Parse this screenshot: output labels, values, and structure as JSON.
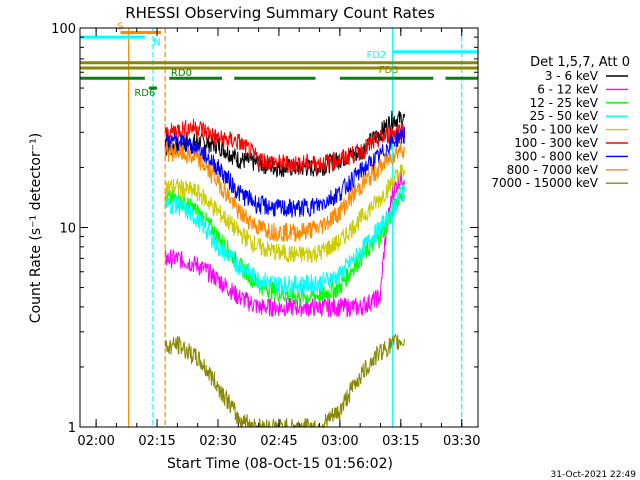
{
  "chart_data": {
    "type": "line",
    "title": "RHESSI Observing Summary Count Rates",
    "xlabel": "Start Time (08-Oct-15 01:56:02)",
    "ylabel": "Count Rate (s⁻¹ detector⁻¹)",
    "x_axis": {
      "unit": "time",
      "range": [
        "01:56:02",
        "03:34:00"
      ],
      "tick_labels": [
        "02:00",
        "02:15",
        "02:30",
        "02:45",
        "03:00",
        "03:15",
        "03:30"
      ]
    },
    "y_axis": {
      "scale": "log",
      "range": [
        1,
        100
      ],
      "tick_labels": [
        "1",
        "10",
        "100"
      ]
    },
    "legend": {
      "placement": "right",
      "header": "Det 1,5,7, Att 0",
      "entries": [
        {
          "label": "3 - 6 keV",
          "color": "#000000"
        },
        {
          "label": "6 - 12 keV",
          "color": "#ff00ff"
        },
        {
          "label": "12 - 25 keV",
          "color": "#00ff00"
        },
        {
          "label": "25 - 50 keV",
          "color": "#00ffff"
        },
        {
          "label": "50 - 100 keV",
          "color": "#cccc00"
        },
        {
          "label": "100 - 300 keV",
          "color": "#ff0000"
        },
        {
          "label": "300 - 800 keV",
          "color": "#0000ff"
        },
        {
          "label": "800 - 7000 keV",
          "color": "#ff8800"
        },
        {
          "label": "7000 - 15000 keV",
          "color": "#888800"
        }
      ]
    },
    "series": [
      {
        "name": "3 - 6 keV",
        "color": "#000000",
        "x": [
          "02:17",
          "02:20",
          "02:25",
          "02:30",
          "02:35",
          "02:40",
          "02:45",
          "02:50",
          "02:55",
          "03:00",
          "03:05",
          "03:10",
          "03:13",
          "03:15",
          "03:16"
        ],
        "y": [
          25,
          26,
          27,
          26,
          22,
          21,
          20,
          20,
          20,
          22,
          24,
          30,
          35,
          35,
          35
        ]
      },
      {
        "name": "6 - 12 keV",
        "color": "#ff00ff",
        "x": [
          "02:17",
          "02:20",
          "02:25",
          "02:30",
          "02:35",
          "02:40",
          "02:45",
          "02:50",
          "02:55",
          "03:00",
          "03:05",
          "03:10",
          "03:13",
          "03:15",
          "03:16"
        ],
        "y": [
          7,
          7,
          6.5,
          5.5,
          4.5,
          4,
          4,
          4,
          4,
          4,
          4,
          4.5,
          15,
          18,
          18
        ]
      },
      {
        "name": "12 - 25 keV",
        "color": "#00ff00",
        "x": [
          "02:17",
          "02:20",
          "02:25",
          "02:30",
          "02:35",
          "02:40",
          "02:45",
          "02:50",
          "02:55",
          "03:00",
          "03:05",
          "03:10",
          "03:13",
          "03:15",
          "03:16"
        ],
        "y": [
          14,
          14,
          12,
          9,
          6.5,
          5.2,
          4.7,
          4.5,
          4.6,
          5,
          7,
          9,
          12,
          15,
          15
        ]
      },
      {
        "name": "25 - 50 keV",
        "color": "#00ffff",
        "x": [
          "02:17",
          "02:20",
          "02:25",
          "02:30",
          "02:35",
          "02:40",
          "02:45",
          "02:50",
          "02:55",
          "03:00",
          "03:05",
          "03:10",
          "03:13",
          "03:15",
          "03:16"
        ],
        "y": [
          13,
          13,
          11,
          8,
          6.5,
          5.5,
          5.2,
          5.2,
          5.3,
          5.8,
          7.5,
          10,
          12,
          15,
          15
        ]
      },
      {
        "name": "50 - 100 keV",
        "color": "#cccc00",
        "x": [
          "02:17",
          "02:20",
          "02:25",
          "02:30",
          "02:35",
          "02:40",
          "02:45",
          "02:50",
          "02:55",
          "03:00",
          "03:05",
          "03:10",
          "03:13",
          "03:15",
          "03:16"
        ],
        "y": [
          16,
          16,
          15,
          12,
          9.5,
          8,
          7.5,
          7.3,
          7.5,
          8.5,
          11,
          14,
          17,
          19,
          19
        ]
      },
      {
        "name": "100 - 300 keV",
        "color": "#ff0000",
        "x": [
          "02:17",
          "02:20",
          "02:25",
          "02:30",
          "02:35",
          "02:40",
          "02:45",
          "02:50",
          "02:55",
          "03:00",
          "03:05",
          "03:10",
          "03:13",
          "03:15",
          "03:16"
        ],
        "y": [
          29,
          31,
          32,
          28,
          27,
          22,
          21,
          21,
          21,
          22,
          24,
          28,
          30,
          31,
          31
        ]
      },
      {
        "name": "300 - 800 keV",
        "color": "#0000ff",
        "x": [
          "02:17",
          "02:20",
          "02:25",
          "02:30",
          "02:35",
          "02:40",
          "02:45",
          "02:50",
          "02:55",
          "03:00",
          "03:05",
          "03:10",
          "03:13",
          "03:15",
          "03:16"
        ],
        "y": [
          27,
          27,
          25,
          20,
          15,
          13,
          12.5,
          12.5,
          13,
          15,
          19,
          23,
          27,
          29,
          29
        ]
      },
      {
        "name": "800 - 7000 keV",
        "color": "#ff8800",
        "x": [
          "02:17",
          "02:20",
          "02:25",
          "02:30",
          "02:35",
          "02:40",
          "02:45",
          "02:50",
          "02:55",
          "03:00",
          "03:05",
          "03:10",
          "03:13",
          "03:15",
          "03:16"
        ],
        "y": [
          24,
          24,
          22,
          17,
          12,
          10,
          9.5,
          9.5,
          10,
          12,
          16,
          20,
          23,
          25,
          25
        ]
      },
      {
        "name": "7000 - 15000 keV",
        "color": "#888800",
        "x": [
          "02:17",
          "02:20",
          "02:25",
          "02:30",
          "02:35",
          "02:40",
          "02:45",
          "02:50",
          "02:55",
          "03:00",
          "03:05",
          "03:10",
          "03:13",
          "03:15",
          "03:16"
        ],
        "y": [
          2.5,
          2.6,
          2.2,
          1.6,
          1.1,
          1,
          1,
          1,
          1,
          1.2,
          1.8,
          2.4,
          2.6,
          2.7,
          2.7
        ]
      }
    ],
    "state_bars": [
      {
        "label": "S",
        "color": "#ff8800",
        "segments": [
          [
            "02:06",
            "02:16"
          ]
        ],
        "level": 95
      },
      {
        "label": "N",
        "color": "#00ffff",
        "segments": [
          [
            "01:56",
            "02:12"
          ]
        ],
        "level": 90
      },
      {
        "label": "FD2",
        "color": "#00ffff",
        "segments": [
          [
            "03:13",
            "03:34"
          ]
        ],
        "level": 76
      },
      {
        "label": "FD2",
        "color": "#888800",
        "segments": [
          [
            "01:56",
            "03:34"
          ]
        ],
        "level": 67
      },
      {
        "label": "FD3",
        "color": "#888800",
        "segments": [
          [
            "01:56",
            "03:34"
          ]
        ],
        "level": 63
      },
      {
        "label": "RD0",
        "color": "#008800",
        "segments": [
          [
            "01:56",
            "02:12"
          ],
          [
            "02:18",
            "02:31"
          ],
          [
            "02:34",
            "02:54"
          ],
          [
            "03:00",
            "03:23"
          ],
          [
            "03:26",
            "03:34"
          ]
        ],
        "level": 56
      },
      {
        "label": "RD6",
        "color": "#008800",
        "segments": [
          [
            "02:13",
            "02:15"
          ]
        ],
        "level": 50
      }
    ],
    "vertical_markers": [
      {
        "time": "02:08",
        "color": "#ff8800",
        "style": "solid"
      },
      {
        "time": "02:14",
        "color": "#00ffff",
        "style": "dashed"
      },
      {
        "time": "02:17",
        "color": "#ff8800",
        "style": "dashed"
      },
      {
        "time": "03:13",
        "color": "#00ffff",
        "style": "solid"
      },
      {
        "time": "03:30",
        "color": "#00ffff",
        "style": "dashed"
      }
    ],
    "grid": false
  },
  "footer": {
    "timestamp": "31-Oct-2021 22:49"
  }
}
